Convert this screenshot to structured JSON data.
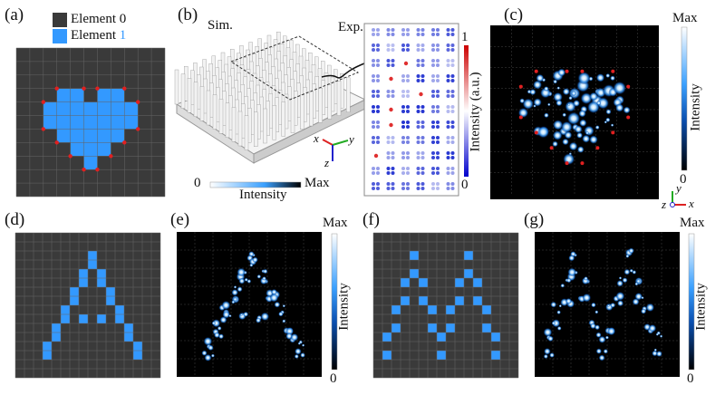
{
  "panels": {
    "a": "(a)",
    "b": "(b)",
    "c": "(c)",
    "d": "(d)",
    "e": "(e)",
    "f": "(f)",
    "g": "(g)"
  },
  "legend": {
    "item0_label": "Element ",
    "item0_value": "0",
    "item1_label": "Element ",
    "item1_value": "1",
    "color0": "#3a3a3a",
    "color1": "#3399ff"
  },
  "panel_b": {
    "sim": "Sim.",
    "exp": "Exp.",
    "cbar_min": "0",
    "cbar_max": "Max",
    "cbar_title": "Intensity",
    "exp_cbar_max": "1",
    "exp_cbar_min": "0",
    "exp_cbar_title": "Intensity (a.u.)",
    "axis_x": "x",
    "axis_y": "y",
    "axis_z": "z"
  },
  "panel_c": {
    "cbar_max": "Max",
    "cbar_min": "0",
    "cbar_title": "Intensity",
    "axis_x": "x",
    "axis_y": "y",
    "axis_z": "z"
  },
  "panel_e": {
    "cbar_max": "Max",
    "cbar_min": "0",
    "cbar_title": "Intensity"
  },
  "panel_g": {
    "cbar_max": "Max",
    "cbar_min": "0",
    "cbar_title": "Intensity"
  },
  "patterns": {
    "heart": {
      "size": 11,
      "cells": [
        [
          3,
          3
        ],
        [
          3,
          4
        ],
        [
          3,
          6
        ],
        [
          3,
          7
        ],
        [
          4,
          2
        ],
        [
          4,
          3
        ],
        [
          4,
          4
        ],
        [
          4,
          5
        ],
        [
          4,
          6
        ],
        [
          4,
          7
        ],
        [
          4,
          8
        ],
        [
          5,
          2
        ],
        [
          5,
          3
        ],
        [
          5,
          4
        ],
        [
          5,
          5
        ],
        [
          5,
          6
        ],
        [
          5,
          7
        ],
        [
          5,
          8
        ],
        [
          6,
          3
        ],
        [
          6,
          4
        ],
        [
          6,
          5
        ],
        [
          6,
          6
        ],
        [
          6,
          7
        ],
        [
          7,
          4
        ],
        [
          7,
          5
        ],
        [
          7,
          6
        ],
        [
          8,
          5
        ]
      ]
    },
    "letter_a": {
      "size": 16,
      "cells": [
        [
          2,
          8
        ],
        [
          3,
          8
        ],
        [
          4,
          7
        ],
        [
          5,
          7
        ],
        [
          4,
          9
        ],
        [
          5,
          9
        ],
        [
          6,
          6
        ],
        [
          7,
          6
        ],
        [
          6,
          10
        ],
        [
          7,
          10
        ],
        [
          8,
          5
        ],
        [
          9,
          5
        ],
        [
          8,
          11
        ],
        [
          9,
          11
        ],
        [
          9,
          7
        ],
        [
          9,
          9
        ],
        [
          10,
          4
        ],
        [
          11,
          4
        ],
        [
          10,
          12
        ],
        [
          11,
          12
        ],
        [
          12,
          3
        ],
        [
          13,
          3
        ],
        [
          12,
          13
        ],
        [
          13,
          13
        ]
      ]
    },
    "letter_m": {
      "size": 16,
      "cells": [
        [
          2,
          4
        ],
        [
          2,
          10
        ],
        [
          4,
          4
        ],
        [
          4,
          10
        ],
        [
          5,
          3
        ],
        [
          5,
          5
        ],
        [
          5,
          9
        ],
        [
          5,
          11
        ],
        [
          7,
          3
        ],
        [
          7,
          5
        ],
        [
          7,
          9
        ],
        [
          7,
          11
        ],
        [
          8,
          2
        ],
        [
          8,
          6
        ],
        [
          8,
          8
        ],
        [
          8,
          12
        ],
        [
          10,
          2
        ],
        [
          10,
          6
        ],
        [
          10,
          8
        ],
        [
          10,
          12
        ],
        [
          11,
          1
        ],
        [
          11,
          7
        ],
        [
          11,
          13
        ],
        [
          13,
          1
        ],
        [
          13,
          7
        ],
        [
          13,
          13
        ]
      ]
    }
  }
}
